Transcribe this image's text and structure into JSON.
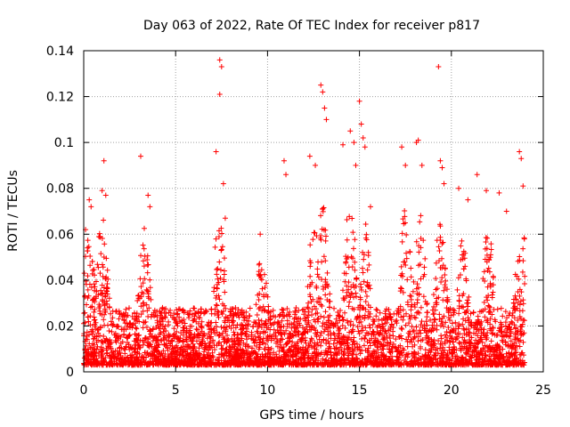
{
  "chart_data": {
    "type": "scatter",
    "title": "Day 063 of 2022, Rate Of TEC Index for receiver p817",
    "xlabel": "GPS time / hours",
    "ylabel": "ROTI / TECUs",
    "xlim": [
      0,
      25
    ],
    "ylim": [
      0,
      0.14
    ],
    "x_ticks": [
      "0",
      "5",
      "10",
      "15",
      "20",
      "25"
    ],
    "y_ticks": [
      "0",
      "0.02",
      "0.04",
      "0.06",
      "0.08",
      "0.1",
      "0.12",
      "0.14"
    ],
    "grid": true,
    "marker": "+",
    "color": "#ff0000",
    "series": [
      {
        "x": [
          0.1,
          0.3,
          0.4,
          1.1,
          1.0,
          1.2,
          3.1,
          3.5,
          3.6,
          7.2,
          7.4,
          7.5,
          7.4,
          7.6,
          7.7,
          9.6,
          10.9,
          11.0,
          12.3,
          12.6,
          12.9,
          13.0,
          13.1,
          13.2,
          14.1,
          14.5,
          14.7,
          14.8,
          15.0,
          15.1,
          15.2,
          15.3,
          15.6,
          17.3,
          17.5,
          18.1,
          18.2,
          18.4,
          19.3,
          19.4,
          19.5,
          19.6,
          20.4,
          20.9,
          21.4,
          21.9,
          22.6,
          23.0,
          23.7,
          23.8,
          23.9
        ],
        "y": [
          0.062,
          0.075,
          0.072,
          0.092,
          0.079,
          0.077,
          0.094,
          0.077,
          0.072,
          0.096,
          0.136,
          0.133,
          0.121,
          0.082,
          0.067,
          0.06,
          0.092,
          0.086,
          0.094,
          0.09,
          0.125,
          0.122,
          0.115,
          0.11,
          0.099,
          0.105,
          0.1,
          0.09,
          0.118,
          0.108,
          0.102,
          0.098,
          0.072,
          0.098,
          0.09,
          0.1,
          0.101,
          0.09,
          0.133,
          0.092,
          0.089,
          0.082,
          0.08,
          0.075,
          0.086,
          0.079,
          0.078,
          0.07,
          0.096,
          0.093,
          0.081
        ]
      }
    ]
  }
}
